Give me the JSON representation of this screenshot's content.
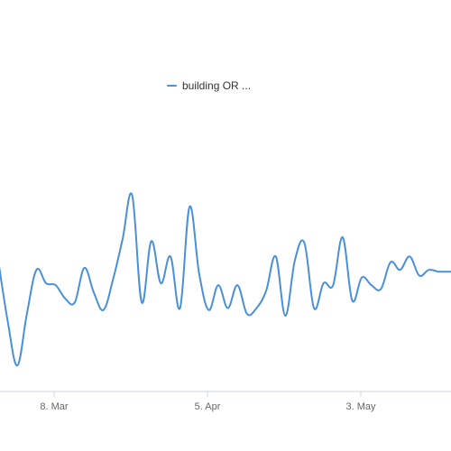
{
  "chart_data": {
    "type": "line",
    "title": "",
    "xlabel": "",
    "ylabel": "",
    "x_tick_labels": [
      "8. Mar",
      "5. Apr",
      "3. May"
    ],
    "ylim": [
      0,
      100
    ],
    "grid": false,
    "legend_position": "top-center",
    "series": [
      {
        "name": "building OR ...",
        "color": "#4a90d9",
        "values": [
          62,
          30,
          7,
          34,
          57,
          50,
          49,
          42,
          40,
          58,
          45,
          36,
          52,
          73,
          96,
          40,
          72,
          50,
          64,
          37,
          90,
          55,
          36,
          49,
          37,
          49,
          34,
          37,
          46,
          64,
          33,
          62,
          71,
          37,
          50,
          49,
          74,
          41,
          53,
          49,
          47,
          61,
          57,
          64,
          54,
          57,
          56
        ]
      }
    ]
  }
}
